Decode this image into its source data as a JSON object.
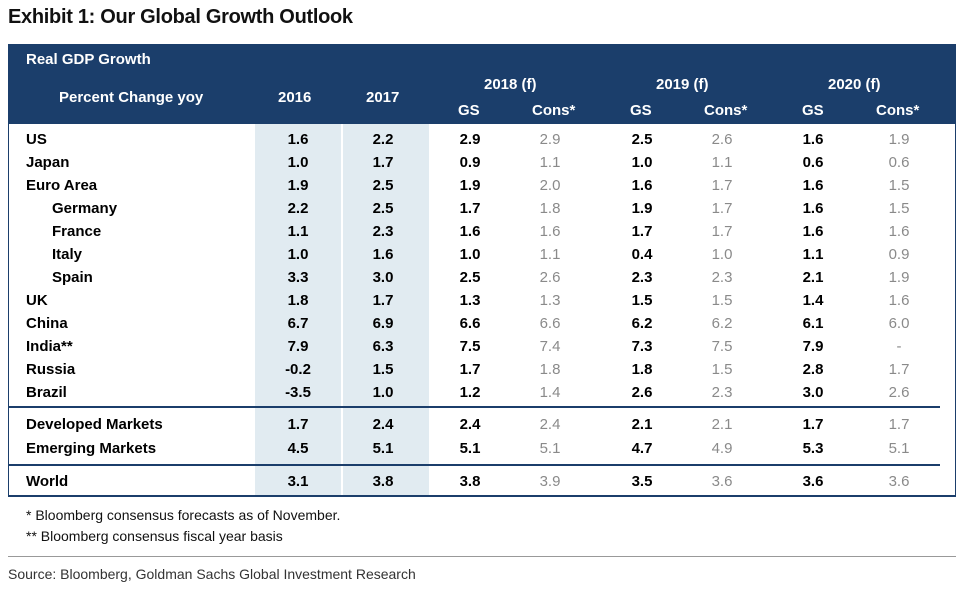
{
  "title": "Exhibit 1: Our Global Growth Outlook",
  "header": {
    "section": "Real GDP Growth",
    "subtitle": "Percent Change yoy",
    "year_2016": "2016",
    "year_2017": "2017",
    "year_2018": "2018 (f)",
    "year_2019": "2019 (f)",
    "year_2020": "2020 (f)",
    "gs": "GS",
    "cons": "Cons*"
  },
  "rows": [
    {
      "label": "US",
      "indent": false,
      "v2016": "1.6",
      "v2017": "2.2",
      "gs2018": "2.9",
      "cons2018": "2.9",
      "gs2019": "2.5",
      "cons2019": "2.6",
      "gs2020": "1.6",
      "cons2020": "1.9"
    },
    {
      "label": "Japan",
      "indent": false,
      "v2016": "1.0",
      "v2017": "1.7",
      "gs2018": "0.9",
      "cons2018": "1.1",
      "gs2019": "1.0",
      "cons2019": "1.1",
      "gs2020": "0.6",
      "cons2020": "0.6"
    },
    {
      "label": "Euro Area",
      "indent": false,
      "v2016": "1.9",
      "v2017": "2.5",
      "gs2018": "1.9",
      "cons2018": "2.0",
      "gs2019": "1.6",
      "cons2019": "1.7",
      "gs2020": "1.6",
      "cons2020": "1.5"
    },
    {
      "label": "Germany",
      "indent": true,
      "v2016": "2.2",
      "v2017": "2.5",
      "gs2018": "1.7",
      "cons2018": "1.8",
      "gs2019": "1.9",
      "cons2019": "1.7",
      "gs2020": "1.6",
      "cons2020": "1.5"
    },
    {
      "label": "France",
      "indent": true,
      "v2016": "1.1",
      "v2017": "2.3",
      "gs2018": "1.6",
      "cons2018": "1.6",
      "gs2019": "1.7",
      "cons2019": "1.7",
      "gs2020": "1.6",
      "cons2020": "1.6"
    },
    {
      "label": "Italy",
      "indent": true,
      "v2016": "1.0",
      "v2017": "1.6",
      "gs2018": "1.0",
      "cons2018": "1.1",
      "gs2019": "0.4",
      "cons2019": "1.0",
      "gs2020": "1.1",
      "cons2020": "0.9"
    },
    {
      "label": "Spain",
      "indent": true,
      "v2016": "3.3",
      "v2017": "3.0",
      "gs2018": "2.5",
      "cons2018": "2.6",
      "gs2019": "2.3",
      "cons2019": "2.3",
      "gs2020": "2.1",
      "cons2020": "1.9"
    },
    {
      "label": "UK",
      "indent": false,
      "v2016": "1.8",
      "v2017": "1.7",
      "gs2018": "1.3",
      "cons2018": "1.3",
      "gs2019": "1.5",
      "cons2019": "1.5",
      "gs2020": "1.4",
      "cons2020": "1.6"
    },
    {
      "label": "China",
      "indent": false,
      "v2016": "6.7",
      "v2017": "6.9",
      "gs2018": "6.6",
      "cons2018": "6.6",
      "gs2019": "6.2",
      "cons2019": "6.2",
      "gs2020": "6.1",
      "cons2020": "6.0"
    },
    {
      "label": "India**",
      "indent": false,
      "v2016": "7.9",
      "v2017": "6.3",
      "gs2018": "7.5",
      "cons2018": "7.4",
      "gs2019": "7.3",
      "cons2019": "7.5",
      "gs2020": "7.9",
      "cons2020": "-"
    },
    {
      "label": "Russia",
      "indent": false,
      "v2016": "-0.2",
      "v2017": "1.5",
      "gs2018": "1.7",
      "cons2018": "1.8",
      "gs2019": "1.8",
      "cons2019": "1.5",
      "gs2020": "2.8",
      "cons2020": "1.7"
    },
    {
      "label": "Brazil",
      "indent": false,
      "v2016": "-3.5",
      "v2017": "1.0",
      "gs2018": "1.2",
      "cons2018": "1.4",
      "gs2019": "2.6",
      "cons2019": "2.3",
      "gs2020": "3.0",
      "cons2020": "2.6"
    },
    {
      "label": "Developed Markets",
      "indent": false,
      "v2016": "1.7",
      "v2017": "2.4",
      "gs2018": "2.4",
      "cons2018": "2.4",
      "gs2019": "2.1",
      "cons2019": "2.1",
      "gs2020": "1.7",
      "cons2020": "1.7"
    },
    {
      "label": "Emerging Markets",
      "indent": false,
      "v2016": "4.5",
      "v2017": "5.1",
      "gs2018": "5.1",
      "cons2018": "5.1",
      "gs2019": "4.7",
      "cons2019": "4.9",
      "gs2020": "5.3",
      "cons2020": "5.1"
    },
    {
      "label": "World",
      "indent": false,
      "v2016": "3.1",
      "v2017": "3.8",
      "gs2018": "3.8",
      "cons2018": "3.9",
      "gs2019": "3.5",
      "cons2019": "3.6",
      "gs2020": "3.6",
      "cons2020": "3.6"
    }
  ],
  "footnotes": {
    "note1": "* Bloomberg consensus forecasts as of November.",
    "note2": "** Bloomberg consensus fiscal year basis"
  },
  "source": "Source: Bloomberg, Goldman Sachs Global Investment Research",
  "colors": {
    "header_bg": "#1b3e6b",
    "shade": "#e1ebf1",
    "cons_text": "#8a8a8a"
  }
}
